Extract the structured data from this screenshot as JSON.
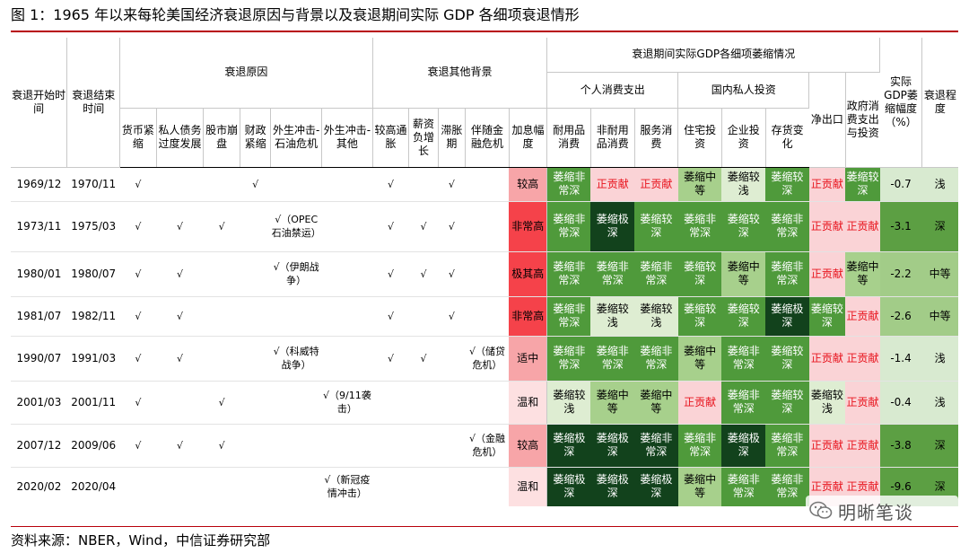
{
  "title": "图 1：1965 年以来每轮美国经济衰退原因与背景以及衰退期间实际 GDP 各细项衰退情形",
  "source": "资料来源：NBER，Wind，中信证券研究部",
  "watermark": "明晰笔谈",
  "header": {
    "start": "衰退开始时间",
    "end": "衰退结束时间",
    "causes": "衰退原因",
    "other_bg": "衰退其他背景",
    "gdp_items": "衰退期间实际GDP各细项萎缩情况",
    "consumption": "个人消费支出",
    "investment": "国内私人投资",
    "net_export": "净出口",
    "gov": "政府消费支出与投资",
    "gdp_drop": "实际GDP萎缩幅度（%）",
    "degree": "衰退程度",
    "sub": {
      "c1": "货币紧缩",
      "c2": "私人债务过度发展",
      "c3": "股市崩盘",
      "c4": "财政紧缩",
      "c5": "外生冲击-石油危机",
      "c6": "外生冲击-其他",
      "b1": "较高通胀",
      "b2": "薪资负增长",
      "b3": "滞胀期",
      "b4": "伴随金融危机",
      "b5": "加息幅度",
      "g1": "耐用品消费",
      "g2": "非耐用品消费",
      "g3": "服务消费",
      "g4": "住宅投资",
      "g5": "企业投资",
      "g6": "存货变化"
    }
  },
  "rows": [
    {
      "start": "1969/12",
      "end": "1970/11",
      "c1": "√",
      "c2": "",
      "c3": "",
      "c4": "√",
      "c5": "",
      "c6": "",
      "b1": "√",
      "b2": "",
      "b3": "√",
      "b4": "",
      "rate": "较高",
      "rate_level": "mid",
      "g": [
        [
          "萎缩非常深",
          "d"
        ],
        [
          "正贡献",
          "p"
        ],
        [
          "正贡献",
          "p"
        ],
        [
          "萎缩中等",
          "m"
        ],
        [
          "萎缩较浅",
          "l"
        ],
        [
          "萎缩较深",
          "d"
        ],
        [
          "正贡献",
          "p"
        ],
        [
          "萎缩较深",
          "d"
        ]
      ],
      "gdp": "-0.7",
      "gdp_level": "low",
      "degree": "浅"
    },
    {
      "start": "1973/11",
      "end": "1975/03",
      "c1": "√",
      "c2": "√",
      "c3": "√",
      "c4": "",
      "c5": "√（OPEC石油禁运）",
      "c6": "",
      "b1": "√",
      "b2": "√",
      "b3": "√",
      "b4": "",
      "rate": "非常高",
      "rate_level": "high",
      "g": [
        [
          "萎缩非常深",
          "d"
        ],
        [
          "萎缩极深",
          "dd"
        ],
        [
          "萎缩较深",
          "d"
        ],
        [
          "萎缩非常深",
          "d"
        ],
        [
          "萎缩较深",
          "d"
        ],
        [
          "萎缩非常深",
          "d"
        ],
        [
          "正贡献",
          "p"
        ],
        [
          "正贡献",
          "p"
        ]
      ],
      "gdp": "-3.1",
      "gdp_level": "deep",
      "degree": "深"
    },
    {
      "start": "1980/01",
      "end": "1980/07",
      "c1": "√",
      "c2": "√",
      "c3": "",
      "c4": "",
      "c5": "√（伊朗战争）",
      "c6": "",
      "b1": "√",
      "b2": "√",
      "b3": "√",
      "b4": "",
      "rate": "极其高",
      "rate_level": "high",
      "g": [
        [
          "萎缩非常深",
          "d"
        ],
        [
          "萎缩非常深",
          "d"
        ],
        [
          "萎缩非常深",
          "d"
        ],
        [
          "萎缩较深",
          "d"
        ],
        [
          "萎缩中等",
          "m"
        ],
        [
          "萎缩非常深",
          "d"
        ],
        [
          "正贡献",
          "p"
        ],
        [
          "萎缩中等",
          "m"
        ]
      ],
      "gdp": "-2.2",
      "gdp_level": "mid",
      "degree": "中等"
    },
    {
      "start": "1981/07",
      "end": "1982/11",
      "c1": "√",
      "c2": "√",
      "c3": "",
      "c4": "",
      "c5": "",
      "c6": "",
      "b1": "√",
      "b2": "",
      "b3": "√",
      "b4": "",
      "rate": "非常高",
      "rate_level": "high",
      "g": [
        [
          "萎缩非常深",
          "d"
        ],
        [
          "萎缩较浅",
          "l"
        ],
        [
          "萎缩较浅",
          "l"
        ],
        [
          "萎缩较深",
          "d"
        ],
        [
          "萎缩较深",
          "d"
        ],
        [
          "萎缩极深",
          "dd"
        ],
        [
          "萎缩较深",
          "d"
        ],
        [
          "正贡献",
          "p"
        ]
      ],
      "gdp": "-2.6",
      "gdp_level": "mid",
      "degree": "中等"
    },
    {
      "start": "1990/07",
      "end": "1991/03",
      "c1": "√",
      "c2": "√",
      "c3": "",
      "c4": "",
      "c5": "√（科威特战争）",
      "c6": "",
      "b1": "√",
      "b2": "√",
      "b3": "",
      "b4": "√（储贷危机）",
      "rate": "适中",
      "rate_level": "mid",
      "g": [
        [
          "萎缩非常深",
          "d"
        ],
        [
          "萎缩非常深",
          "d"
        ],
        [
          "萎缩非常深",
          "d"
        ],
        [
          "萎缩中等",
          "m"
        ],
        [
          "萎缩非常深",
          "d"
        ],
        [
          "萎缩较深",
          "d"
        ],
        [
          "正贡献",
          "p"
        ],
        [
          "正贡献",
          "p"
        ]
      ],
      "gdp": "-1.4",
      "gdp_level": "low",
      "degree": "浅"
    },
    {
      "start": "2001/03",
      "end": "2001/11",
      "c1": "√",
      "c2": "",
      "c3": "√",
      "c4": "",
      "c5": "",
      "c6": "√（9/11袭击）",
      "b1": "",
      "b2": "",
      "b3": "",
      "b4": "",
      "rate": "温和",
      "rate_level": "low",
      "g": [
        [
          "萎缩较浅",
          "l"
        ],
        [
          "萎缩中等",
          "m"
        ],
        [
          "萎缩中等",
          "m"
        ],
        [
          "正贡献",
          "p"
        ],
        [
          "萎缩非常深",
          "d"
        ],
        [
          "萎缩较深",
          "d"
        ],
        [
          "萎缩较浅",
          "l"
        ],
        [
          "正贡献",
          "p"
        ]
      ],
      "gdp": "-0.4",
      "gdp_level": "low",
      "degree": "浅"
    },
    {
      "start": "2007/12",
      "end": "2009/06",
      "c1": "√",
      "c2": "√",
      "c3": "√",
      "c4": "",
      "c5": "",
      "c6": "",
      "b1": "",
      "b2": "",
      "b3": "",
      "b4": "√（金融危机）",
      "rate": "较高",
      "rate_level": "mid",
      "g": [
        [
          "萎缩极深",
          "dd"
        ],
        [
          "萎缩极深",
          "dd"
        ],
        [
          "萎缩非常深",
          "dd"
        ],
        [
          "萎缩非常深",
          "d"
        ],
        [
          "萎缩极深",
          "dd"
        ],
        [
          "萎缩非常深",
          "d"
        ],
        [
          "正贡献",
          "p"
        ],
        [
          "正贡献",
          "p"
        ]
      ],
      "gdp": "-3.8",
      "gdp_level": "deep",
      "degree": "深"
    },
    {
      "start": "2020/02",
      "end": "2020/04",
      "c1": "",
      "c2": "",
      "c3": "",
      "c4": "",
      "c5": "",
      "c6": "√（新冠疫情冲击）",
      "b1": "",
      "b2": "",
      "b3": "",
      "b4": "",
      "rate": "温和",
      "rate_level": "low",
      "g": [
        [
          "萎缩极深",
          "dd"
        ],
        [
          "萎缩极深",
          "dd"
        ],
        [
          "萎缩极深",
          "dd"
        ],
        [
          "萎缩中等",
          "m"
        ],
        [
          "萎缩非常深",
          "d"
        ],
        [
          "萎缩非常深",
          "d"
        ],
        [
          "正贡献",
          "p"
        ],
        [
          "正贡献",
          "p"
        ]
      ],
      "gdp": "-9.6",
      "gdp_level": "deep",
      "degree": "深"
    }
  ],
  "colors": {
    "title_rule": "#b8000b",
    "deepest": "#12421c",
    "deep": "#4f9a3b",
    "medium": "#a7d08c",
    "light": "#deedd2",
    "positive_bg": "#fad3d6",
    "positive_text": "#e8141e",
    "rate_high": "#f5424a",
    "rate_mid": "#f7a5a8",
    "rate_low": "#fde0e1"
  }
}
